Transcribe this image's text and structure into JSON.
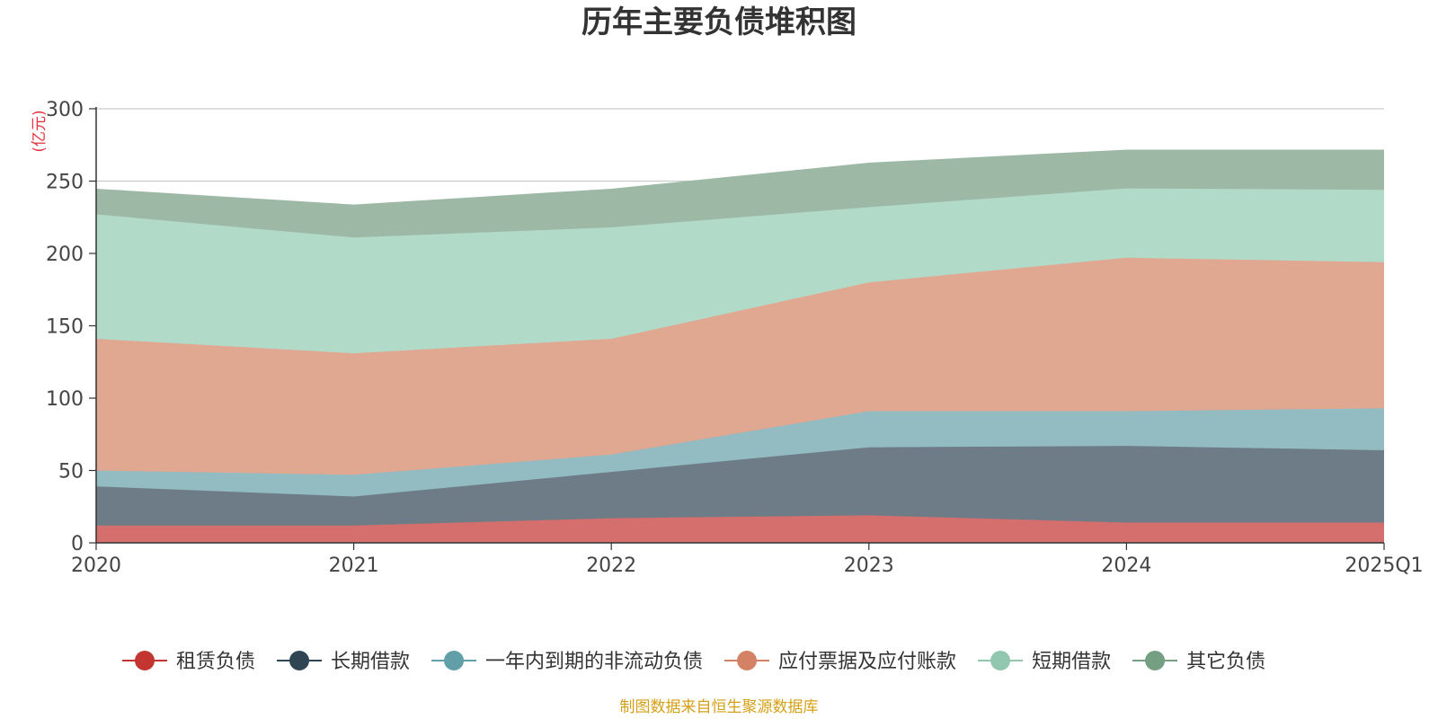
{
  "chart_data": {
    "type": "area",
    "stacked": true,
    "title": "历年主要负债堆积图",
    "y_unit_label": "(亿元)",
    "categories": [
      "2020",
      "2021",
      "2022",
      "2023",
      "2024",
      "2025Q1"
    ],
    "ylim": [
      0,
      300
    ],
    "y_ticks": [
      0,
      50,
      100,
      150,
      200,
      250,
      300
    ],
    "grid": true,
    "legend_position": "bottom",
    "series": [
      {
        "name": "租赁负债",
        "values": [
          12,
          12,
          17,
          19,
          14,
          14
        ]
      },
      {
        "name": "长期借款",
        "values": [
          27,
          20,
          32,
          47,
          53,
          50
        ]
      },
      {
        "name": "一年内到期的非流动负债",
        "values": [
          11,
          15,
          12,
          25,
          24,
          29
        ]
      },
      {
        "name": "应付票据及应付账款",
        "values": [
          91,
          84,
          80,
          89,
          106,
          101
        ]
      },
      {
        "name": "短期借款",
        "values": [
          86,
          80,
          77,
          52,
          48,
          50
        ]
      },
      {
        "name": "其它负债",
        "values": [
          17,
          22,
          26,
          30,
          26,
          27
        ]
      }
    ]
  },
  "colors": {
    "series_line": [
      "#c23531",
      "#2f4554",
      "#61a0a8",
      "#d48265",
      "#91c7ae",
      "#749f83"
    ],
    "series_fill": [
      "#d46f6d",
      "#6e7c87",
      "#92bbc2",
      "#e0a791",
      "#b2dac8",
      "#9db9a6"
    ],
    "unit_label": "#e5323e",
    "source_text": "#d4a017",
    "grid": "#cccccc",
    "axis": "#333333"
  },
  "source_text": "制图数据来自恒生聚源数据库"
}
